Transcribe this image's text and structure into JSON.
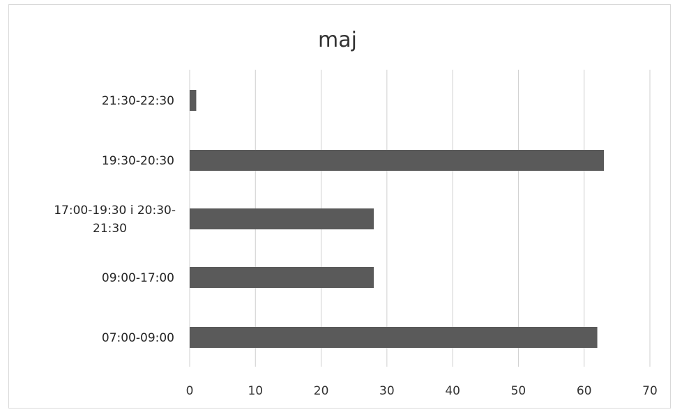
{
  "chart_data": {
    "type": "bar",
    "orientation": "horizontal",
    "title": "maj",
    "xlabel": "",
    "ylabel": "",
    "categories": [
      "21:30-22:30",
      "19:30-20:30",
      "17:00-19:30 i 20:30-21:30",
      "09:00-17:00",
      "07:00-09:00"
    ],
    "category_lines": [
      [
        "21:30-22:30"
      ],
      [
        "19:30-20:30"
      ],
      [
        "17:00-19:30 i 20:30-",
        "21:30"
      ],
      [
        "09:00-17:00"
      ],
      [
        "07:00-09:00"
      ]
    ],
    "values": [
      1,
      63,
      28,
      28,
      62
    ],
    "xlim": [
      0,
      70
    ],
    "xticks": [
      0,
      10,
      20,
      30,
      40,
      50,
      60,
      70
    ],
    "grid": true,
    "legend": "none",
    "colors": {
      "bar": "#5a5a5a",
      "grid": "#cfcfcf",
      "text": "#262626"
    }
  }
}
